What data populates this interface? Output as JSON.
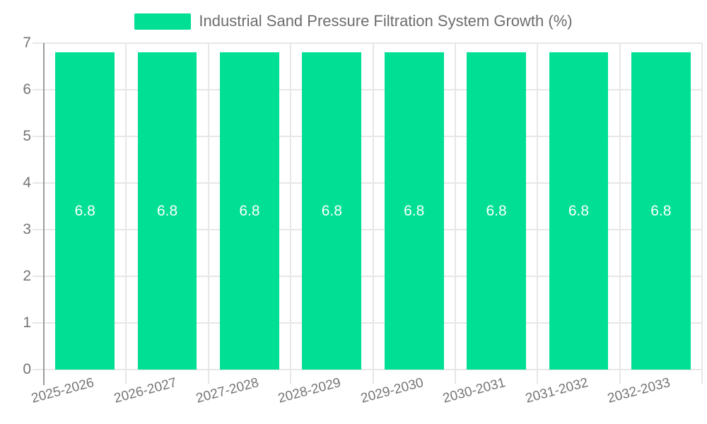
{
  "legend": {
    "label": "Industrial Sand Pressure Filtration System Growth (%)",
    "swatch_color": "#00DF94"
  },
  "chart_data": {
    "type": "bar",
    "title": "Industrial Sand Pressure Filtration System Growth (%)",
    "categories": [
      "2025-2026",
      "2026-2027",
      "2027-2028",
      "2028-2029",
      "2029-2030",
      "2030-2031",
      "2031-2032",
      "2032-2033"
    ],
    "series": [
      {
        "name": "Industrial Sand Pressure Filtration System Growth (%)",
        "values": [
          6.8,
          6.8,
          6.8,
          6.8,
          6.8,
          6.8,
          6.8,
          6.8
        ]
      }
    ],
    "value_labels": [
      "6.8",
      "6.8",
      "6.8",
      "6.8",
      "6.8",
      "6.8",
      "6.8",
      "6.8"
    ],
    "xlabel": "",
    "ylabel": "",
    "ylim": [
      0,
      7
    ],
    "yticks": [
      0,
      1,
      2,
      3,
      4,
      5,
      6,
      7
    ],
    "grid": true,
    "legend_position": "top",
    "x_label_rotation_deg": -15,
    "colors": {
      "bar": "#00DF94",
      "value_label": "#ffffff",
      "grid": "#e7e7e7",
      "axis_line": "#9c9c9c",
      "tick_text": "#757575",
      "title_text": "#6d6d6d"
    }
  }
}
